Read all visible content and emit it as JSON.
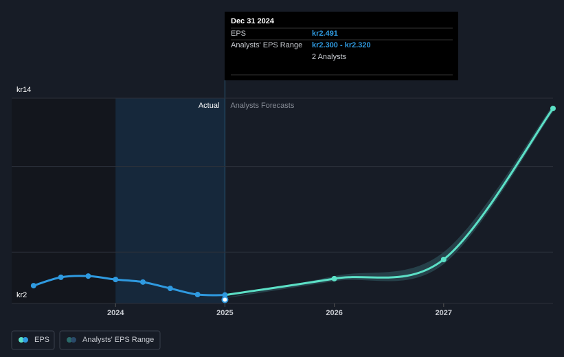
{
  "chart_data": {
    "type": "line",
    "xlim": [
      2023.05,
      2028
    ],
    "xticks": [
      2024,
      2025,
      2026,
      2027
    ],
    "ylim": [
      2,
      14
    ],
    "yticks": [
      {
        "value": 2,
        "label": "kr2"
      },
      {
        "value": 14,
        "label": "kr14"
      }
    ],
    "gridlines": [
      5,
      10
    ],
    "actual_label": "Actual",
    "forecast_label": "Analysts Forecasts",
    "series": [
      {
        "name": "EPS",
        "color": "#2f9ae0",
        "x": [
          2023.25,
          2023.5,
          2023.75,
          2024,
          2024.25,
          2024.5,
          2024.75,
          2025
        ],
        "values": [
          3.04,
          3.53,
          3.6,
          3.4,
          3.25,
          2.88,
          2.52,
          2.49
        ]
      }
    ],
    "forecast": {
      "color": "#5ce0c6",
      "x": [
        2025,
        2026,
        2027,
        2028
      ],
      "values": [
        2.49,
        3.45,
        4.57,
        13.4
      ]
    },
    "range": {
      "name": "Analysts' EPS Range",
      "color": "#2a4a52",
      "x": [
        2025,
        2026,
        2027,
        2028
      ],
      "low": [
        2.3,
        3.3,
        4.3,
        13.2
      ],
      "high": [
        2.32,
        3.6,
        5.0,
        13.6
      ]
    },
    "tooltip": {
      "date": "Dec 31 2024",
      "eps_label": "EPS",
      "eps": "kr2.491",
      "range_label": "Analysts' EPS Range",
      "range": "kr2.300 - kr2.320",
      "analysts": "2 Analysts"
    }
  }
}
